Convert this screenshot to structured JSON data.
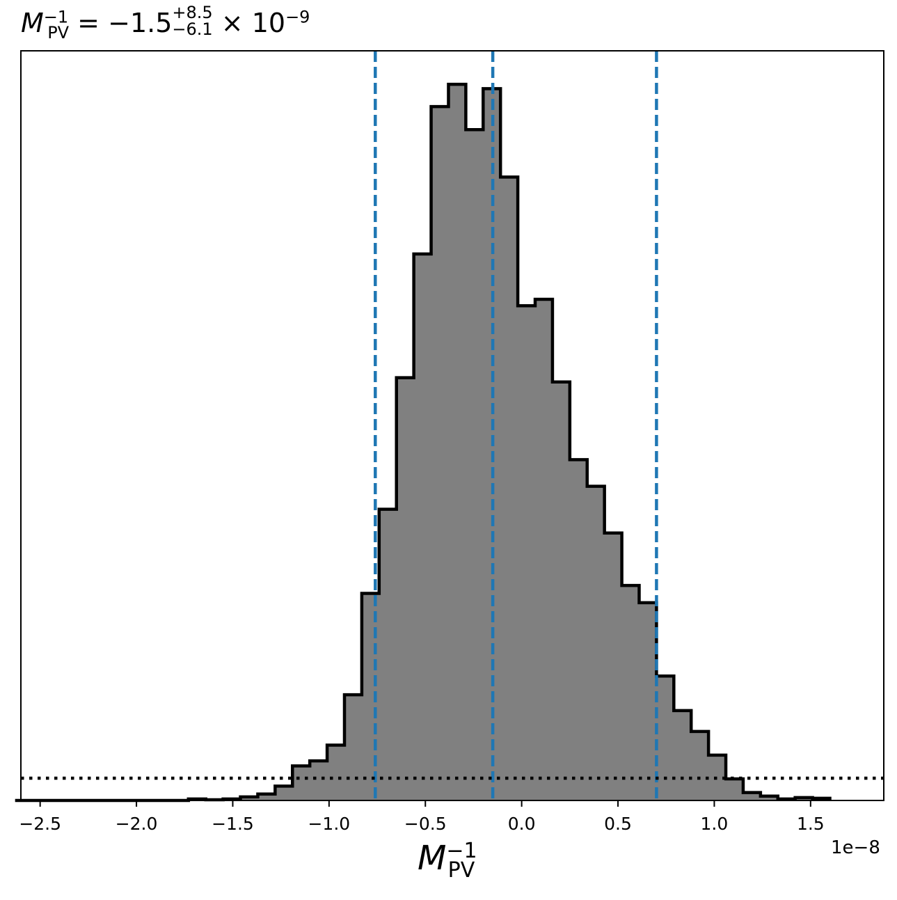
{
  "title": {
    "lhs_symbol": "M",
    "lhs_sup": "−1",
    "lhs_sub": "PV",
    "equals": "=",
    "value": "−1.5",
    "upper": "+8.5",
    "lower": "−6.1",
    "times": "×",
    "base": "10",
    "exponent": "−9"
  },
  "xlabel": {
    "symbol": "M",
    "sup": "−1",
    "sub": "PV"
  },
  "offset_text": "1e−8",
  "colors": {
    "fill": "#808080",
    "edge": "#000000",
    "quantile_line": "#1f77b4",
    "dotted_line": "#000000"
  },
  "chart_data": {
    "type": "histogram",
    "x_unit_scale": 1e-08,
    "xlim": [
      -2.6,
      1.88
    ],
    "ylim": [
      0,
      100
    ],
    "xticks": [
      -2.5,
      -2.0,
      -1.5,
      -1.0,
      -0.5,
      0.0,
      0.5,
      1.0,
      1.5
    ],
    "xtick_labels": [
      "−2.5",
      "−2.0",
      "−1.5",
      "−1.0",
      "−0.5",
      "0.0",
      "0.5",
      "1.0",
      "1.5"
    ],
    "yticks": [],
    "bin_edges": [
      -2.63,
      -2.54,
      -2.45,
      -2.36,
      -2.27,
      -2.18,
      -2.09,
      -2.0,
      -1.91,
      -1.82,
      -1.73,
      -1.64,
      -1.55,
      -1.46,
      -1.37,
      -1.28,
      -1.19,
      -1.1,
      -1.01,
      -0.92,
      -0.83,
      -0.74,
      -0.65,
      -0.56,
      -0.47,
      -0.38,
      -0.29,
      -0.2,
      -0.11,
      -0.02,
      0.07,
      0.16,
      0.25,
      0.34,
      0.43,
      0.52,
      0.61,
      0.7,
      0.79,
      0.88,
      0.97,
      1.06,
      1.15,
      1.24,
      1.33,
      1.42,
      1.51,
      1.6
    ],
    "counts": [
      0,
      0,
      0,
      0,
      0,
      0,
      0,
      0,
      0,
      0,
      0.2,
      0.1,
      0.2,
      0.5,
      0.9,
      2.0,
      4.8,
      5.5,
      7.7,
      14.7,
      28.8,
      40.5,
      58.8,
      76.0,
      96.5,
      99.6,
      93.3,
      99.0,
      86.7,
      68.8,
      69.7,
      58.2,
      47.4,
      43.7,
      37.2,
      29.9,
      27.5,
      17.3,
      12.5,
      9.6,
      6.3,
      3.0,
      1.1,
      0.6,
      0.2,
      0.4,
      0.3
    ],
    "quantile_lines": [
      -0.76,
      -0.15,
      0.7
    ],
    "horizontal_dotted_line": 3.1
  }
}
